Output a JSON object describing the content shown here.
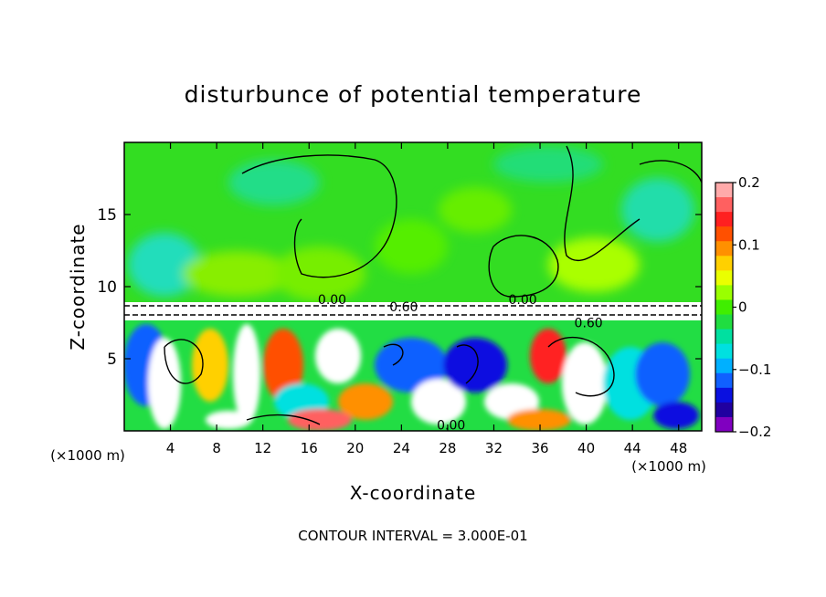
{
  "chart_data": {
    "type": "heatmap",
    "title": "disturbunce of potential temperature",
    "xlabel": "X-coordinate",
    "ylabel": "Z-coordinate",
    "x_unit": "(×1000 m)",
    "z_unit": "(×1000 m)",
    "xlim": [
      0,
      50
    ],
    "ylim": [
      0,
      20
    ],
    "x_ticks": [
      4,
      8,
      12,
      16,
      20,
      24,
      28,
      32,
      36,
      40,
      44,
      48
    ],
    "y_ticks": [
      5,
      10,
      15
    ],
    "contour_labels": [
      {
        "text": "0.00",
        "x": 18,
        "z": 9.1
      },
      {
        "text": "0.60",
        "x": 24.2,
        "z": 8.6
      },
      {
        "text": "0.00",
        "x": 34.5,
        "z": 9.1
      },
      {
        "text": "0.60",
        "x": 40.2,
        "z": 7.5
      },
      {
        "text": "0.00",
        "x": 28.3,
        "z": 0.4
      }
    ],
    "colorbar": {
      "min": -0.2,
      "max": 0.2,
      "ticks": [
        0.2,
        0.1,
        0,
        -0.1,
        -0.2
      ],
      "tick_labels": [
        "0.2",
        "0.1",
        "0",
        "−0.1",
        "−0.2"
      ],
      "colors": [
        "#ffaaaa",
        "#ff6060",
        "#ff2020",
        "#ff5000",
        "#ff9000",
        "#ffd000",
        "#eaff00",
        "#9aff00",
        "#40ee00",
        "#20dd40",
        "#00e0a0",
        "#00e0e0",
        "#00b0ff",
        "#1060ff",
        "#0a10e0",
        "#2000a0",
        "#8000c0"
      ]
    },
    "annotation": "CONTOUR INTERVAL = 3.000E-01"
  }
}
